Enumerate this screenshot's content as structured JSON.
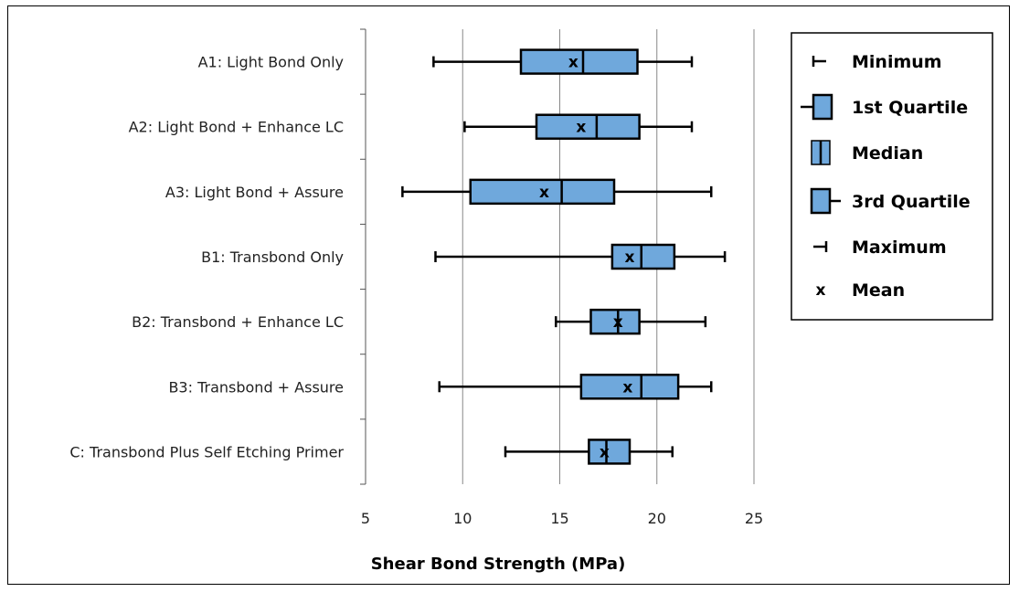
{
  "chart_data": {
    "type": "boxplot",
    "xlabel": "Shear Bond Strength (MPa)",
    "xlim": [
      5,
      25
    ],
    "xticks": [
      5,
      10,
      15,
      20,
      25
    ],
    "grid": "vertical",
    "legend_position": "right",
    "box_color": "#6fa8dc",
    "categories": [
      "A1: Light Bond Only",
      "A2: Light Bond + Enhance LC",
      "A3: Light Bond + Assure",
      "B1: Transbond Only",
      "B2: Transbond + Enhance LC",
      "B3: Transbond + Assure",
      "C: Transbond Plus Self Etching Primer"
    ],
    "series": [
      {
        "min": 8.5,
        "q1": 13.0,
        "median": 16.2,
        "q3": 19.0,
        "max": 21.8,
        "mean": 15.7
      },
      {
        "min": 10.1,
        "q1": 13.8,
        "median": 16.9,
        "q3": 19.1,
        "max": 21.8,
        "mean": 16.1
      },
      {
        "min": 6.9,
        "q1": 10.4,
        "median": 15.1,
        "q3": 17.8,
        "max": 22.8,
        "mean": 14.2
      },
      {
        "min": 8.6,
        "q1": 17.7,
        "median": 19.2,
        "q3": 20.9,
        "max": 23.5,
        "mean": 18.6
      },
      {
        "min": 14.8,
        "q1": 16.6,
        "median": 18.0,
        "q3": 19.1,
        "max": 22.5,
        "mean": 18.0
      },
      {
        "min": 8.8,
        "q1": 16.1,
        "median": 19.2,
        "q3": 21.1,
        "max": 22.8,
        "mean": 18.5
      },
      {
        "min": 12.2,
        "q1": 16.5,
        "median": 17.4,
        "q3": 18.6,
        "max": 20.8,
        "mean": 17.3
      }
    ],
    "legend": [
      {
        "key": "min",
        "label": "Minimum"
      },
      {
        "key": "q1",
        "label": "1st Quartile"
      },
      {
        "key": "median",
        "label": "Median"
      },
      {
        "key": "q3",
        "label": "3rd Quartile"
      },
      {
        "key": "max",
        "label": "Maximum"
      },
      {
        "key": "mean",
        "label": "Mean",
        "symbol": "x"
      }
    ]
  }
}
